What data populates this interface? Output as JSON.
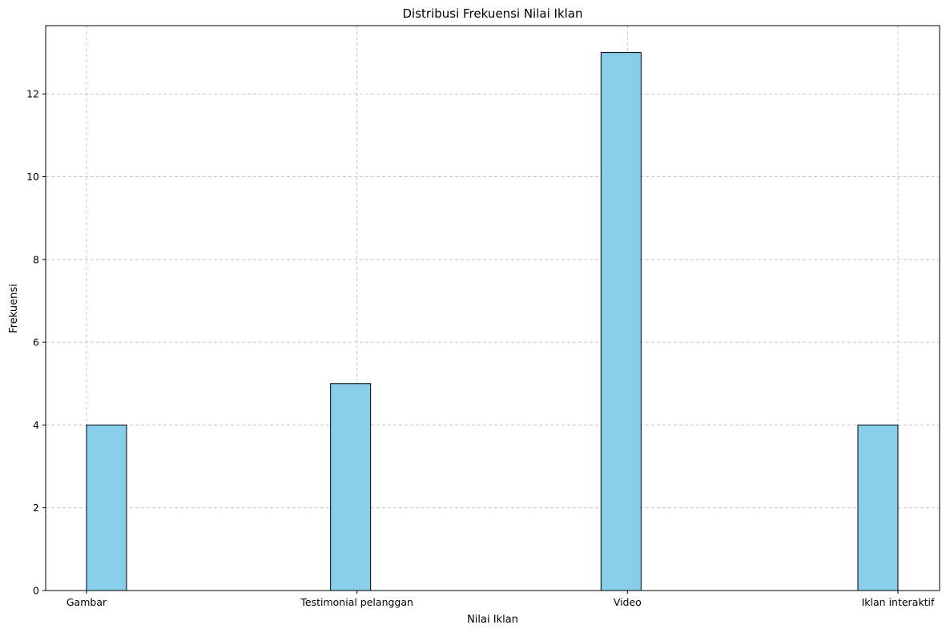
{
  "chart_data": {
    "type": "bar",
    "title": "Distribusi Frekuensi Nilai Iklan",
    "xlabel": "Nilai Iklan",
    "ylabel": "Frekuensi",
    "categories": [
      "Gambar",
      "Testimonial pelanggan",
      "Video",
      "Iklan interaktif"
    ],
    "values": [
      4,
      5,
      13,
      4
    ],
    "ylim": [
      0,
      13.65
    ],
    "yticks": [
      "0",
      "2",
      "4",
      "6",
      "8",
      "10",
      "12"
    ],
    "grid": true,
    "bar_color": "#87ceeb",
    "edge_color": "#000000",
    "grid_color": "#c8c8c8"
  }
}
